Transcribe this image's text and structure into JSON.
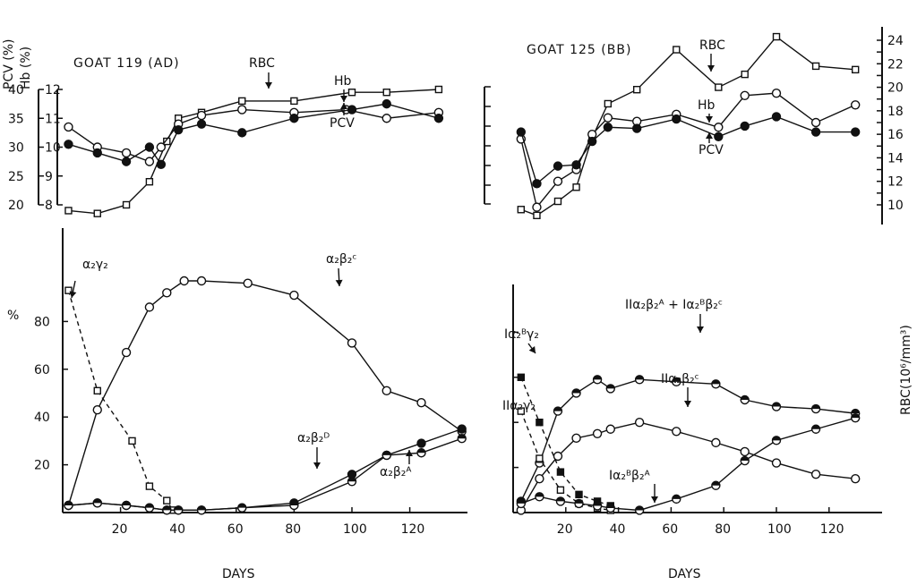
{
  "xlabel": "DAYS",
  "percent_label": "%",
  "rbc_axis_label": "RBC(10⁶/mm³)",
  "pcv_label": "PCV (%)",
  "hb_label": "Hb (%)",
  "left_title": "GOAT 119 (AD)",
  "right_title": "GOAT 125 (BB)",
  "annotations": {
    "rbc": "RBC",
    "hb": "Hb",
    "pcv": "PCV",
    "l_a2g2": "α₂γ₂",
    "l_a2b2c": "α₂β₂ᶜ",
    "l_a2b2d": "α₂β₂ᴰ",
    "l_a2b2a": "α₂β₂ᴬ",
    "r_big": "IIα₂β₂ᴬ + Iα₂ᴮβ₂ᶜ",
    "r_a2b2c": "IIα₂β₂ᶜ",
    "r_a2bg2": "Iα₂ᴮγ₂",
    "r_a2g2": "IIα₂γ₂",
    "r_a2bb2a": "Iα₂ᴮβ₂ᴬ"
  },
  "chart_data": [
    {
      "type": "line",
      "title": "GOAT 119 (AD)",
      "ylabel": "PCV (%)",
      "pcv_ticks": [
        "20",
        "25",
        "30",
        "35",
        "40"
      ],
      "hb_ticks": [
        "8",
        "9",
        "10",
        "11",
        "12"
      ],
      "xlim": [
        0,
        140
      ],
      "series": [
        {
          "name": "RBC",
          "marker": "square-open",
          "x": [
            2,
            12,
            22,
            30,
            36,
            40,
            48,
            62,
            80,
            100,
            112,
            130
          ],
          "y": [
            7.8,
            7.7,
            8.0,
            8.8,
            10.2,
            11.0,
            11.2,
            11.6,
            11.6,
            11.9,
            11.9,
            12.0
          ]
        },
        {
          "name": "Hb",
          "marker": "circle-open",
          "x": [
            2,
            12,
            22,
            30,
            34,
            40,
            48,
            62,
            80,
            98,
            112,
            130
          ],
          "y": [
            10.7,
            10.0,
            9.8,
            9.5,
            10.0,
            10.8,
            11.1,
            11.3,
            11.2,
            11.3,
            11.0,
            11.2
          ]
        },
        {
          "name": "PCV",
          "marker": "circle-filled",
          "x": [
            2,
            12,
            22,
            30,
            34,
            40,
            48,
            62,
            80,
            100,
            112,
            130
          ],
          "y": [
            30.5,
            29.0,
            27.5,
            30.0,
            27.0,
            33.0,
            34.0,
            32.5,
            35.0,
            36.5,
            37.5,
            35.0
          ]
        }
      ]
    },
    {
      "type": "line",
      "title": "GOAT 125 (BB)",
      "ylabel": "RBC(10⁶/mm³)",
      "rbc_ticks": [
        "10",
        "12",
        "14",
        "16",
        "18",
        "20",
        "22",
        "24"
      ],
      "xlim": [
        0,
        140
      ],
      "series": [
        {
          "name": "RBC",
          "marker": "square-open",
          "x": [
            3,
            9,
            17,
            24,
            30,
            36,
            47,
            62,
            78,
            88,
            100,
            115,
            130
          ],
          "y": [
            9.6,
            9.1,
            10.3,
            11.5,
            15.7,
            18.6,
            19.8,
            23.2,
            20.0,
            21.1,
            24.3,
            21.8,
            21.5
          ]
        },
        {
          "name": "Hb",
          "marker": "circle-open",
          "x": [
            3,
            9,
            17,
            24,
            30,
            36,
            47,
            62,
            78,
            88,
            100,
            115,
            130
          ],
          "y": [
            15.6,
            9.8,
            12.0,
            13.0,
            16.0,
            17.4,
            17.1,
            17.7,
            16.6,
            19.3,
            19.5,
            17.0,
            18.5
          ]
        },
        {
          "name": "PCV",
          "marker": "circle-filled",
          "x": [
            3,
            9,
            17,
            24,
            30,
            36,
            47,
            62,
            78,
            88,
            100,
            115,
            130
          ],
          "y": [
            16.2,
            11.8,
            13.3,
            13.4,
            15.4,
            16.6,
            16.5,
            17.3,
            15.8,
            16.7,
            17.5,
            16.2,
            16.2
          ]
        }
      ]
    },
    {
      "type": "line",
      "title": "",
      "xlabel": "DAYS",
      "ylabel": "%",
      "xlim": [
        0,
        140
      ],
      "ylim": [
        0,
        100
      ],
      "xticks": [
        20,
        40,
        60,
        80,
        100,
        120
      ],
      "yticks": [
        20,
        40,
        60,
        80
      ],
      "series": [
        {
          "name": "α₂β₂ᶜ",
          "marker": "circle-open",
          "style": "solid",
          "x": [
            2,
            12,
            22,
            30,
            36,
            42,
            48,
            64,
            80,
            100,
            112,
            124,
            138
          ],
          "y": [
            3,
            43,
            67,
            86,
            92,
            97,
            97,
            96,
            91,
            71,
            51,
            46,
            34
          ]
        },
        {
          "name": "α₂γ₂",
          "marker": "square-open",
          "style": "dashed",
          "x": [
            2,
            12,
            24,
            30,
            36,
            38
          ],
          "y": [
            93,
            51,
            30,
            11,
            5,
            1
          ]
        },
        {
          "name": "α₂β₂ᴰ",
          "marker": "circle-filled",
          "style": "solid",
          "x": [
            2,
            12,
            22,
            30,
            36,
            40,
            48,
            62,
            80,
            100,
            112,
            124,
            138
          ],
          "y": [
            3,
            4,
            3,
            2,
            1,
            1,
            1,
            2,
            4,
            16,
            24,
            29,
            35
          ]
        },
        {
          "name": "α₂β₂ᴬ",
          "marker": "circle-half",
          "style": "solid",
          "x": [
            2,
            12,
            22,
            30,
            36,
            40,
            48,
            62,
            80,
            100,
            112,
            124,
            138
          ],
          "y": [
            3,
            4,
            3,
            2,
            1,
            1,
            1,
            2,
            3,
            13,
            24,
            25,
            31
          ]
        }
      ]
    },
    {
      "type": "line",
      "title": "",
      "xlabel": "DAYS",
      "ylabel": "RBC(10⁶/mm³)",
      "xlim": [
        0,
        140
      ],
      "ylim": [
        0,
        100
      ],
      "xticks": [
        20,
        40,
        60,
        80,
        100,
        120
      ],
      "series": [
        {
          "name": "IIα₂β₂ᴬ + Iα₂ᴮβ₂ᶜ",
          "marker": "circle-half",
          "style": "solid",
          "x": [
            3,
            10,
            17,
            24,
            32,
            37,
            48,
            62,
            77,
            88,
            100,
            115,
            130
          ],
          "y": [
            5,
            22,
            45,
            53,
            59,
            55,
            59,
            58,
            57,
            50,
            47,
            46,
            44
          ]
        },
        {
          "name": "IIα₂β₂ᶜ",
          "marker": "circle-open",
          "style": "solid",
          "x": [
            3,
            10,
            17,
            24,
            32,
            37,
            48,
            62,
            77,
            88,
            100,
            115,
            130
          ],
          "y": [
            1,
            15,
            25,
            33,
            35,
            37,
            40,
            36,
            31,
            27,
            22,
            17,
            15
          ]
        },
        {
          "name": "Iα₂ᴮγ₂",
          "marker": "square-filled",
          "style": "dashed",
          "x": [
            3,
            10,
            18,
            25,
            32,
            37
          ],
          "y": [
            60,
            40,
            18,
            8,
            5,
            3
          ]
        },
        {
          "name": "IIα₂γ₂",
          "marker": "square-open",
          "style": "dashed",
          "x": [
            3,
            10,
            18,
            25,
            32,
            37
          ],
          "y": [
            45,
            24,
            10,
            4,
            2,
            1
          ]
        },
        {
          "name": "Iα₂ᴮβ₂ᴬ",
          "marker": "circle-half",
          "style": "solid",
          "x": [
            3,
            10,
            18,
            25,
            32,
            37,
            48,
            62,
            77,
            88,
            100,
            115,
            130
          ],
          "y": [
            4,
            7,
            5,
            4,
            3,
            2,
            1,
            6,
            12,
            23,
            32,
            37,
            42
          ]
        }
      ]
    }
  ]
}
